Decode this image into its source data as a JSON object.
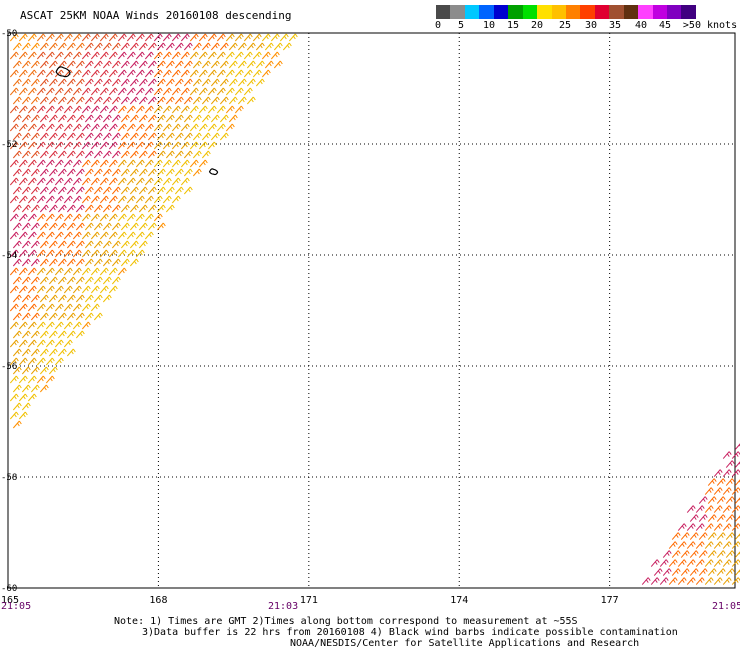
{
  "header": {
    "title": "ASCAT 25KM NOAA Winds 20160108 descending"
  },
  "legend": {
    "colors": [
      "#4a4a4a",
      "#8c8c8c",
      "#00c8ff",
      "#0064ff",
      "#0000d0",
      "#00a000",
      "#00e000",
      "#ffe000",
      "#ffc000",
      "#ff8000",
      "#ff4000",
      "#e00030",
      "#a05030",
      "#603010",
      "#ff40ff",
      "#c000e0",
      "#8000c0",
      "#400080"
    ],
    "labels": [
      "0",
      "5",
      "10",
      "15",
      "20",
      "25",
      "30",
      "35",
      "40",
      "45",
      ">50 knots"
    ]
  },
  "axes": {
    "lat_labels": [
      "-50",
      "-52",
      "-54",
      "-56",
      "-58",
      "-60"
    ],
    "lon_labels": [
      "165",
      "168",
      "171",
      "174",
      "177"
    ],
    "time_labels": [
      "21:05",
      "21:03",
      "21:05"
    ]
  },
  "footer": {
    "line1": "Note: 1) Times are GMT 2)Times along bottom correspond to measurement at ~55S",
    "line2": "3)Data buffer is 22 hrs from 20160108 4) Black wind barbs indicate possible contamination",
    "line3": "NOAA/NESDIS/Center for Satellite Applications and Research"
  },
  "map_data": {
    "lat_range": [
      -60,
      -50
    ],
    "lon_range": [
      165,
      179.5
    ],
    "swaths": [
      {
        "name": "west-swath",
        "corners_lonlat": [
          [
            165,
            -50
          ],
          [
            170.7,
            -50
          ],
          [
            165,
            -57.2
          ]
        ]
      },
      {
        "name": "east-swath",
        "corners_lonlat": [
          [
            179.5,
            -57.2
          ],
          [
            179.5,
            -60
          ],
          [
            177.4,
            -60
          ]
        ]
      }
    ],
    "islands": [
      {
        "name": "auckland-islands",
        "lon": 166.1,
        "lat": -50.7
      },
      {
        "name": "campbell-island",
        "lon": 169.1,
        "lat": -52.5
      }
    ]
  }
}
